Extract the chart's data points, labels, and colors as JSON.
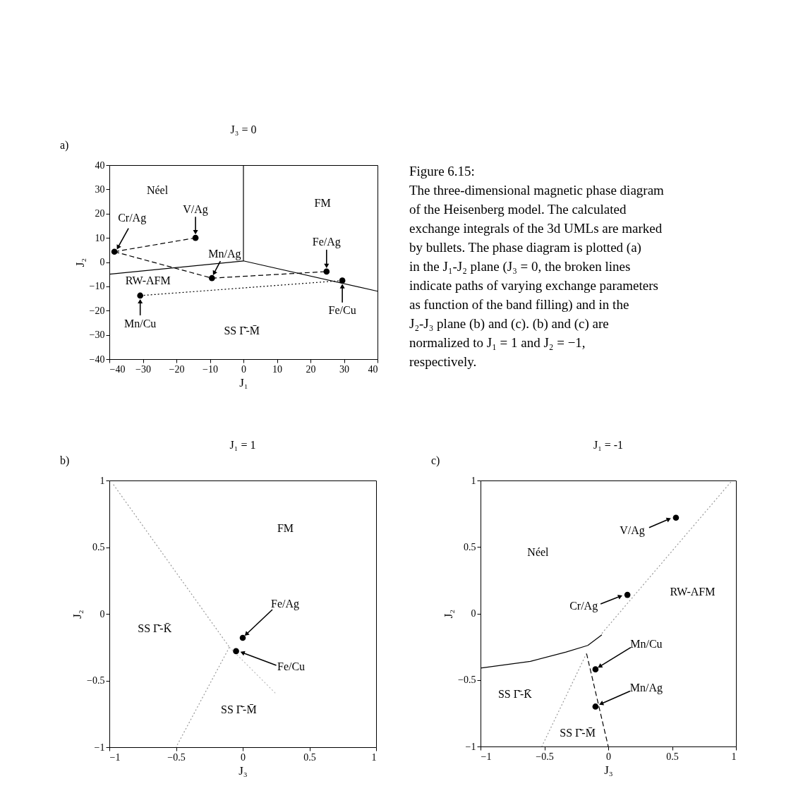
{
  "chart_data": [
    {
      "type": "scatter",
      "title": "J₃ = 0",
      "xlabel": "J₁",
      "ylabel": "J₂",
      "xlim": [
        -40,
        40
      ],
      "ylim": [
        -40,
        40
      ],
      "xticks": [
        -40,
        -30,
        -20,
        -10,
        0,
        10,
        20,
        30,
        40
      ],
      "yticks": [
        -40,
        -30,
        -20,
        -10,
        0,
        10,
        20,
        30,
        40
      ],
      "grid": false,
      "series": [
        {
          "type": "line",
          "color": "#000000",
          "line_style": "solid",
          "x": [
            0,
            0
          ],
          "values": [
            0.5,
            40
          ]
        },
        {
          "type": "line",
          "color": "#000000",
          "line_style": "solid",
          "x": [
            -40,
            0,
            40
          ],
          "values": [
            -5,
            0.5,
            -12
          ]
        },
        {
          "type": "line",
          "color": "#000000",
          "line_style": "dashed",
          "x": [
            -38.5,
            -14.3
          ],
          "values": [
            4.3,
            10
          ]
        },
        {
          "type": "line",
          "color": "#000000",
          "line_style": "dashed",
          "x": [
            -38.5,
            -9.4,
            24.8
          ],
          "values": [
            4.3,
            -6.6,
            -3.9
          ]
        },
        {
          "type": "line",
          "color": "#000000",
          "line_style": "dotted",
          "x": [
            -30.8,
            29.5
          ],
          "values": [
            -13.8,
            -7.6
          ]
        },
        {
          "type": "scatter",
          "color": "#000000",
          "marker": "circle",
          "x": [
            -38.5,
            -14.3,
            -9.4,
            24.8,
            29.5,
            -30.8
          ],
          "values": [
            4.3,
            10,
            -6.6,
            -3.9,
            -7.6,
            -13.8
          ]
        }
      ],
      "annotations": [
        "a)",
        "Néel",
        "FM",
        "RW-AFM",
        "SS Γ̄-M̄",
        {
          "text": "Cr/Ag",
          "x": -38.5,
          "y": 4.3
        },
        {
          "text": "V/Ag",
          "x": -14.3,
          "y": 10
        },
        {
          "text": "Mn/Ag",
          "x": -9.4,
          "y": -6.6
        },
        {
          "text": "Fe/Ag",
          "x": 24.8,
          "y": -3.9
        },
        {
          "text": "Fe/Cu",
          "x": 29.5,
          "y": -7.6
        },
        {
          "text": "Mn/Cu",
          "x": -30.8,
          "y": -13.8
        }
      ]
    },
    {
      "type": "other",
      "title": "Figure 6.15:",
      "annotations": [
        "The three-dimensional magnetic phase diagram of the Heisenberg model. The calculated exchange integrals of the 3d UMLs are marked by bullets. The phase diagram is plotted (a) in the J₁-J₂ plane (J₃ = 0, the broken lines indicate paths of varying exchange parameters as function of the band filling) and in the J₂-J₃ plane (b) and (c). (b) and (c) are normalized to J₁ = 1 and J₂ = −1, respectively."
      ]
    },
    {
      "type": "scatter",
      "title": "J₁ = 1",
      "xlabel": "J₃",
      "ylabel": "J₂",
      "xlim": [
        -1,
        1
      ],
      "ylim": [
        -1,
        1
      ],
      "xticks": [
        -1,
        -0.5,
        0,
        0.5,
        1
      ],
      "yticks": [
        -1,
        -0.5,
        0,
        0.5,
        1
      ],
      "grid": false,
      "series": [
        {
          "type": "line",
          "color": "#999999",
          "line_style": "dotted",
          "x": [
            -0.97,
            -0.1
          ],
          "values": [
            0.97,
            -0.25
          ]
        },
        {
          "type": "line",
          "color": "#999999",
          "line_style": "dotted",
          "x": [
            -0.1,
            -0.5
          ],
          "values": [
            -0.25,
            -1
          ]
        },
        {
          "type": "line",
          "color": "#bbbbbb",
          "line_style": "dotted",
          "x": [
            -0.1,
            0.25
          ],
          "values": [
            -0.25,
            -0.6
          ]
        },
        {
          "type": "scatter",
          "color": "#000000",
          "marker": "circle",
          "x": [
            0,
            -0.05
          ],
          "values": [
            -0.18,
            -0.28
          ]
        }
      ],
      "annotations": [
        "b)",
        "FM",
        "SS Γ̄-K̄",
        "SS Γ̄-M̄",
        {
          "text": "Fe/Ag",
          "x": 0,
          "y": -0.18
        },
        {
          "text": "Fe/Cu",
          "x": -0.05,
          "y": -0.28
        }
      ]
    },
    {
      "type": "scatter",
      "title": "J₁ = -1",
      "xlabel": "J₃",
      "ylabel": "J₂",
      "xlim": [
        -1,
        1
      ],
      "ylim": [
        -1,
        1
      ],
      "xticks": [
        -1,
        -0.5,
        0,
        0.5,
        1
      ],
      "yticks": [
        -1,
        -0.5,
        0,
        0.5,
        1
      ],
      "grid": false,
      "series": [
        {
          "type": "line",
          "color": "#000000",
          "line_style": "solid",
          "x": [
            -1,
            -0.61,
            -0.33,
            -0.16,
            -0.05
          ],
          "values": [
            -0.41,
            -0.36,
            -0.29,
            -0.24,
            -0.16
          ]
        },
        {
          "type": "line",
          "color": "#000000",
          "line_style": "dashed",
          "x": [
            -0.17,
            0
          ],
          "values": [
            -0.3,
            -1
          ]
        },
        {
          "type": "line",
          "color": "#999999",
          "line_style": "dotted",
          "x": [
            -0.17,
            -0.52
          ],
          "values": [
            -0.3,
            -1
          ]
        },
        {
          "type": "line",
          "color": "#999999",
          "line_style": "dotted",
          "x": [
            -0.05,
            0.97
          ],
          "values": [
            -0.15,
            1
          ]
        },
        {
          "type": "scatter",
          "color": "#000000",
          "marker": "circle",
          "x": [
            0.53,
            0.15,
            -0.1,
            -0.1
          ],
          "values": [
            0.72,
            0.14,
            -0.42,
            -0.7
          ]
        }
      ],
      "annotations": [
        "c)",
        "Néel",
        "RW-AFM",
        "SS Γ̄-K̄",
        "SS Γ̄-M̄",
        {
          "text": "V/Ag",
          "x": 0.53,
          "y": 0.72
        },
        {
          "text": "Cr/Ag",
          "x": 0.15,
          "y": 0.14
        },
        {
          "text": "Mn/Cu",
          "x": -0.1,
          "y": -0.42
        },
        {
          "text": "Mn/Ag",
          "x": -0.1,
          "y": -0.7
        }
      ]
    }
  ]
}
